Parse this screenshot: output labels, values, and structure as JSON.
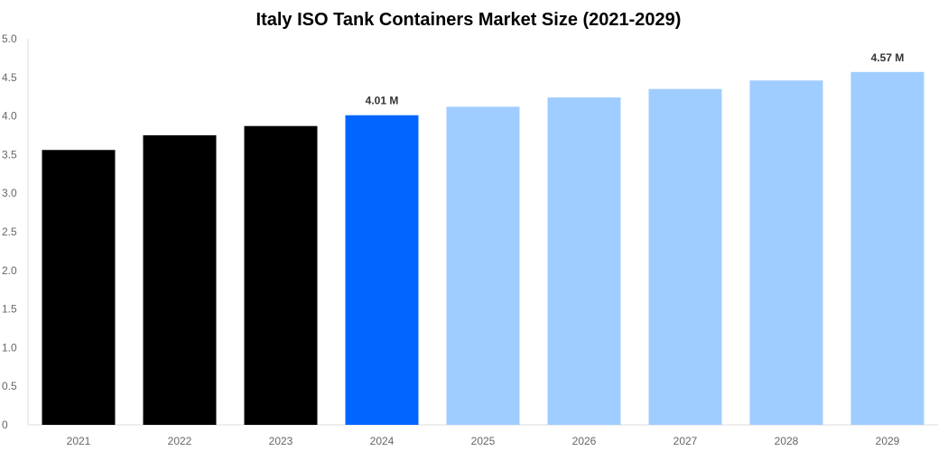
{
  "chart_data": {
    "type": "bar",
    "title": "Italy ISO Tank Containers Market Size (2021-2029)",
    "xlabel": "",
    "ylabel": "",
    "categories": [
      "2021",
      "2022",
      "2023",
      "2024",
      "2025",
      "2026",
      "2027",
      "2028",
      "2029"
    ],
    "values": [
      3.56,
      3.75,
      3.87,
      4.01,
      4.12,
      4.24,
      4.35,
      4.46,
      4.57
    ],
    "ylim": [
      0,
      5.0
    ],
    "yticks": [
      "0",
      "0.5",
      "1.0",
      "1.5",
      "2.0",
      "2.5",
      "3.0",
      "3.5",
      "4.0",
      "4.5",
      "5.0"
    ],
    "data_labels": {
      "3": "4.01 M",
      "8": "4.57 M"
    },
    "bar_colors": [
      "#000000",
      "#000000",
      "#000000",
      "#0066ff",
      "#a0cdff",
      "#a0cdff",
      "#a0cdff",
      "#a0cdff",
      "#a0cdff"
    ],
    "grid": false,
    "legend": "none"
  }
}
